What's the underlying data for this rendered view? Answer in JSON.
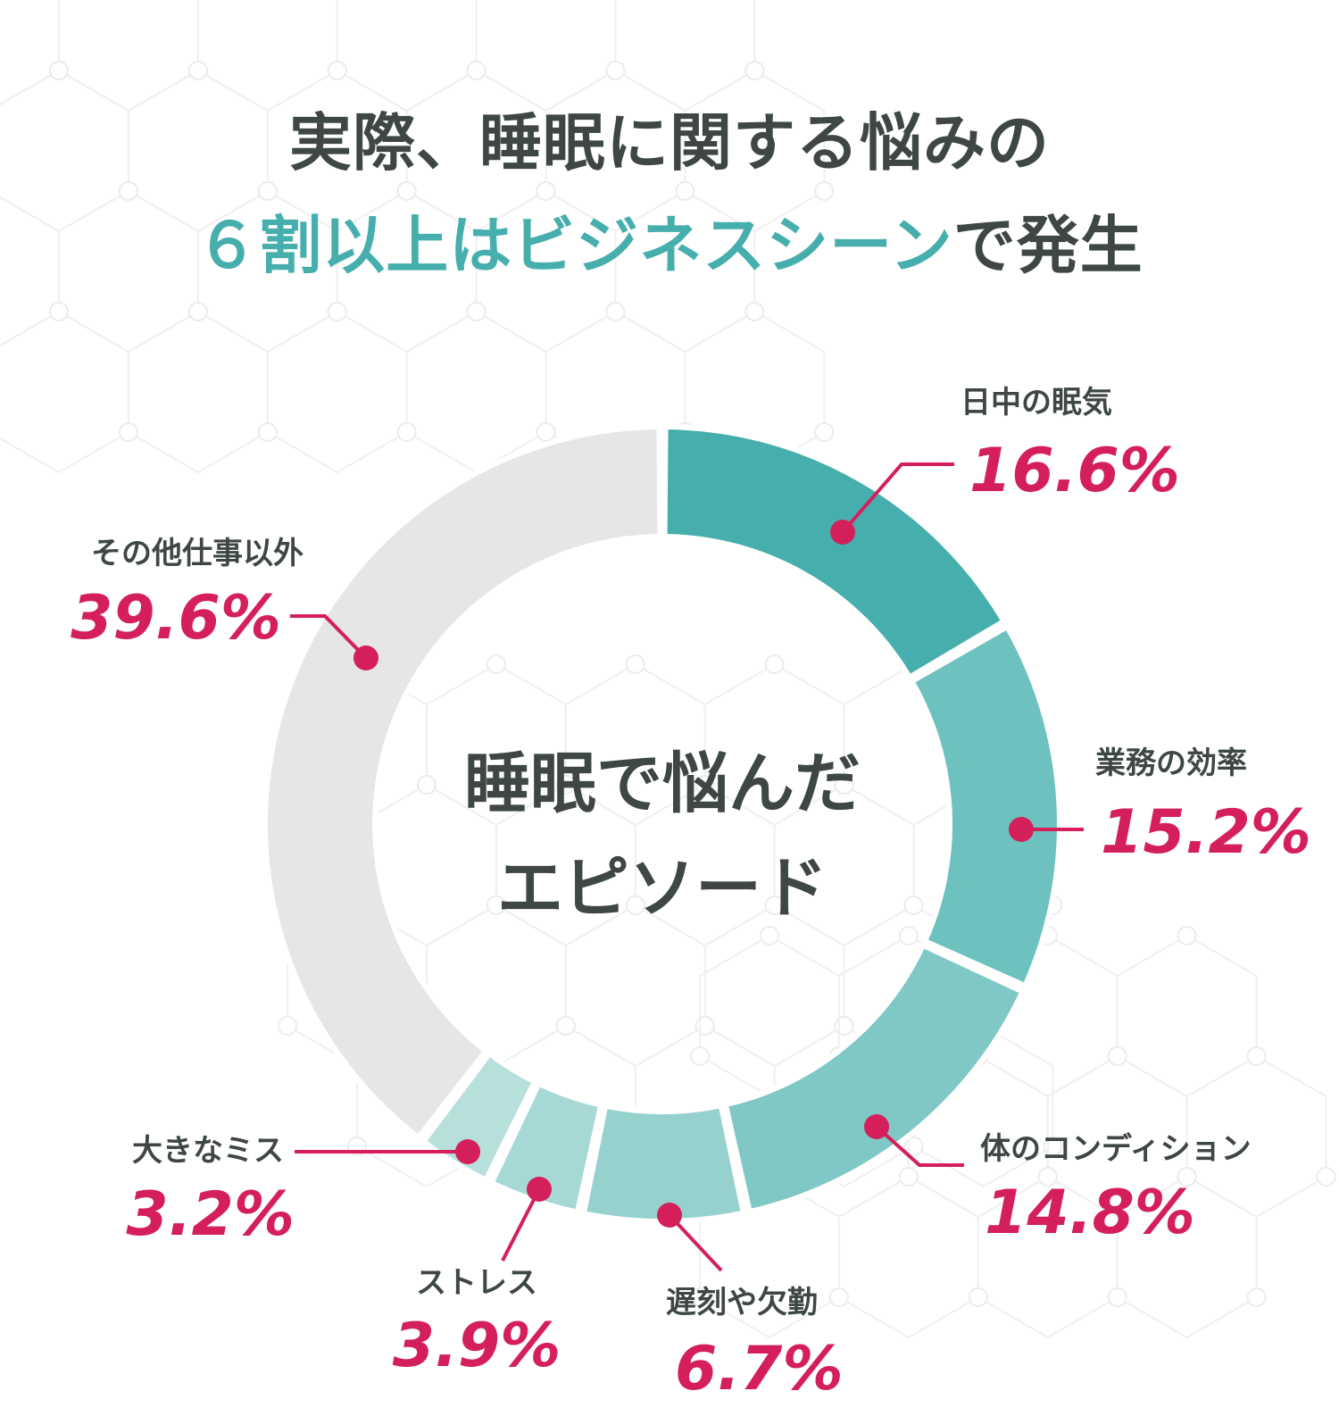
{
  "title": {
    "line1": "実際、睡眠に関する悩みの",
    "line2_highlight": "６割以上はビジネスシーン",
    "line2_tail": "で発生"
  },
  "chart_data": {
    "type": "pie",
    "variant": "donut",
    "center_label": [
      "睡眠で悩んだ",
      "エピソード"
    ],
    "unit": "%",
    "slices": [
      {
        "label": "日中の眠気",
        "value": 16.6,
        "display": "16.6%",
        "color": "#46afad"
      },
      {
        "label": "業務の効率",
        "value": 15.2,
        "display": "15.2%",
        "color": "#6dc1bf"
      },
      {
        "label": "体のコンディション",
        "value": 14.8,
        "display": "14.8%",
        "color": "#7fc8c5"
      },
      {
        "label": "遅刻や欠勤",
        "value": 6.7,
        "display": "6.7%",
        "color": "#96d1ce"
      },
      {
        "label": "ストレス",
        "value": 3.9,
        "display": "3.9%",
        "color": "#a6d9d6"
      },
      {
        "label": "大きなミス",
        "value": 3.2,
        "display": "3.2%",
        "color": "#b7e0dd"
      },
      {
        "label": "その他仕事以外",
        "value": 39.6,
        "display": "39.6%",
        "color": "#e6e6e6"
      }
    ],
    "callout_color": "#d41f5b"
  }
}
